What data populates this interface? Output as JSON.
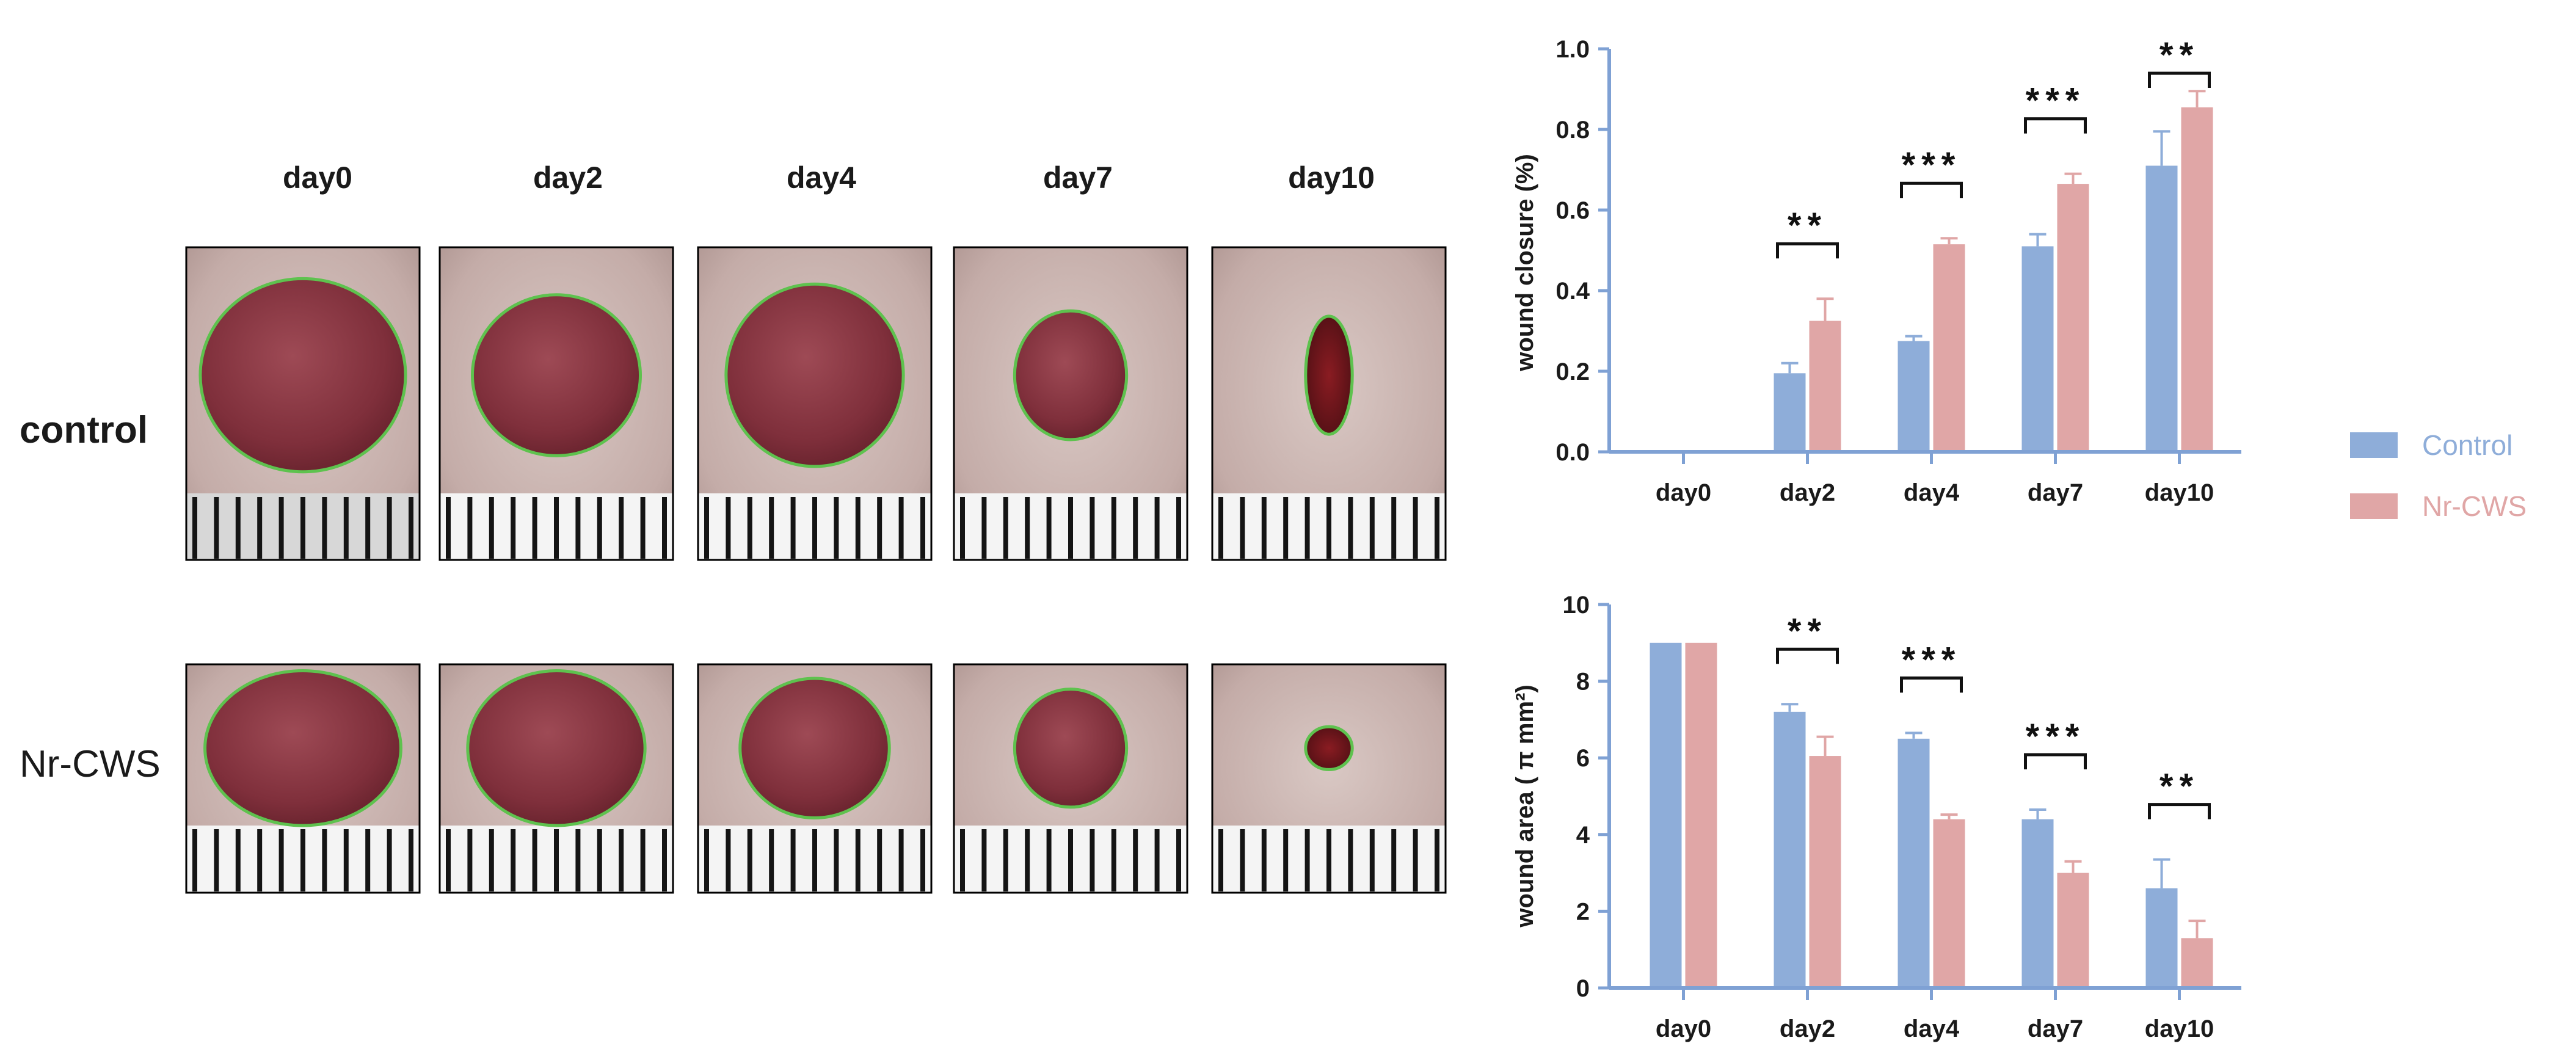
{
  "photo_panel": {
    "columns": [
      "day0",
      "day2",
      "day4",
      "day7",
      "day10"
    ],
    "rows": [
      "control",
      "Nr-CWS"
    ]
  },
  "legend": {
    "items": [
      {
        "label": "Control",
        "color": "#8EADD9"
      },
      {
        "label": "Nr-CWS",
        "color": "#E0A6A6"
      }
    ]
  },
  "chart_data": [
    {
      "type": "bar",
      "categories": [
        "day0",
        "day2",
        "day4",
        "day7",
        "day10"
      ],
      "series": [
        {
          "name": "Control",
          "values": [
            0,
            0.195,
            0.275,
            0.51,
            0.71
          ],
          "errors": [
            0,
            0.025,
            0.012,
            0.03,
            0.085
          ],
          "color": "#8EADD9"
        },
        {
          "name": "Nr-CWS",
          "values": [
            0,
            0.325,
            0.515,
            0.665,
            0.855
          ],
          "errors": [
            0,
            0.055,
            0.015,
            0.025,
            0.04
          ],
          "color": "#E0A6A6"
        }
      ],
      "ylabel": "wound closure (%)",
      "xlabel": "",
      "ylim": [
        0,
        1.0
      ],
      "yticks": [
        "0.0",
        "0.2",
        "0.4",
        "0.6",
        "0.8",
        "1.0"
      ],
      "significance": [
        "",
        "**",
        "***",
        "***",
        "**"
      ]
    },
    {
      "type": "bar",
      "categories": [
        "day0",
        "day2",
        "day4",
        "day7",
        "day10"
      ],
      "series": [
        {
          "name": "Control",
          "values": [
            9.0,
            7.2,
            6.5,
            4.4,
            2.6
          ],
          "errors": [
            0,
            0.2,
            0.15,
            0.25,
            0.75
          ],
          "color": "#8EADD9"
        },
        {
          "name": "Nr-CWS",
          "values": [
            9.0,
            6.05,
            4.4,
            3.0,
            1.3
          ],
          "errors": [
            0,
            0.5,
            0.12,
            0.3,
            0.45
          ],
          "color": "#E0A6A6"
        }
      ],
      "ylabel": "wound area ( π mm²)",
      "xlabel": "",
      "ylim": [
        0,
        10
      ],
      "yticks": [
        "0",
        "2",
        "4",
        "6",
        "8",
        "10"
      ],
      "significance": [
        "",
        "**",
        "***",
        "***",
        "**"
      ]
    }
  ]
}
